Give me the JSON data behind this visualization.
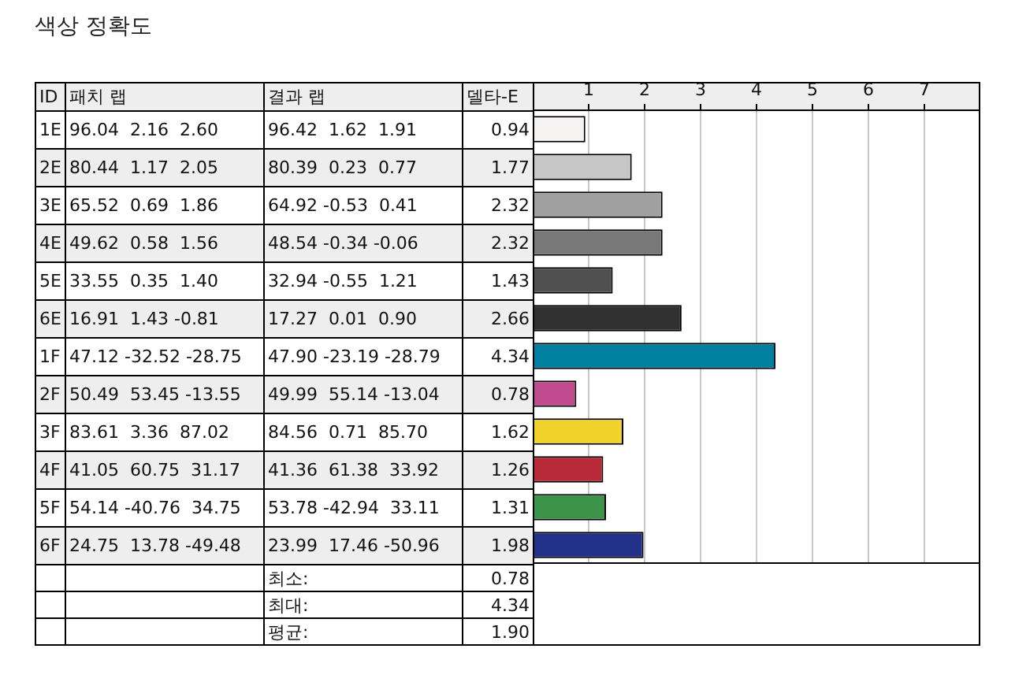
{
  "chart_data": {
    "type": "bar",
    "orientation": "horizontal",
    "title": "색상 정확도",
    "categories": [
      "1E",
      "2E",
      "3E",
      "4E",
      "5E",
      "6E",
      "1F",
      "2F",
      "3F",
      "4F",
      "5F",
      "6F"
    ],
    "values": [
      0.94,
      1.77,
      2.32,
      2.32,
      1.43,
      2.66,
      4.34,
      0.78,
      1.62,
      1.26,
      1.31,
      1.98
    ],
    "colors": [
      "#f7f3f2",
      "#c6c6c6",
      "#a0a0a0",
      "#787878",
      "#505050",
      "#303030",
      "#007fa0",
      "#c04a8e",
      "#f0d22a",
      "#b82a38",
      "#3c944a",
      "#22308a"
    ],
    "x2lim": [
      0,
      8
    ],
    "x2ticks": [
      1,
      2,
      3,
      4,
      5,
      6,
      7
    ],
    "grid": "x",
    "data_labels": true,
    "annotations": [
      "ID",
      "패치 랩",
      "결과 랩",
      "델타-E",
      "96.04  2.16  2.60",
      "96.42  1.62  1.91",
      "80.44  1.17  2.05",
      "80.39  0.23  0.77",
      "65.52  0.69  1.86",
      "64.92 -0.53  0.41",
      "49.62  0.58  1.56",
      "48.54 -0.34 -0.06",
      "33.55  0.35  1.40",
      "32.94 -0.55  1.21",
      "16.91  1.43 -0.81",
      "17.27  0.01  0.90",
      "47.12 -32.52 -28.75",
      "47.90 -23.19 -28.79",
      "50.49  53.45 -13.55",
      "49.99  55.14 -13.04",
      "83.61  3.36  87.02",
      "84.56  0.71  85.70",
      "41.05  60.75  31.17",
      "41.36  61.38  33.92",
      "54.14 -40.76  34.75",
      "53.78 -42.94  33.11",
      "24.75  13.78 -49.48",
      "23.99  17.46 -50.96",
      "최소:",
      "0.78",
      "최대:",
      "4.34",
      "평균:",
      "1.90"
    ]
  }
}
